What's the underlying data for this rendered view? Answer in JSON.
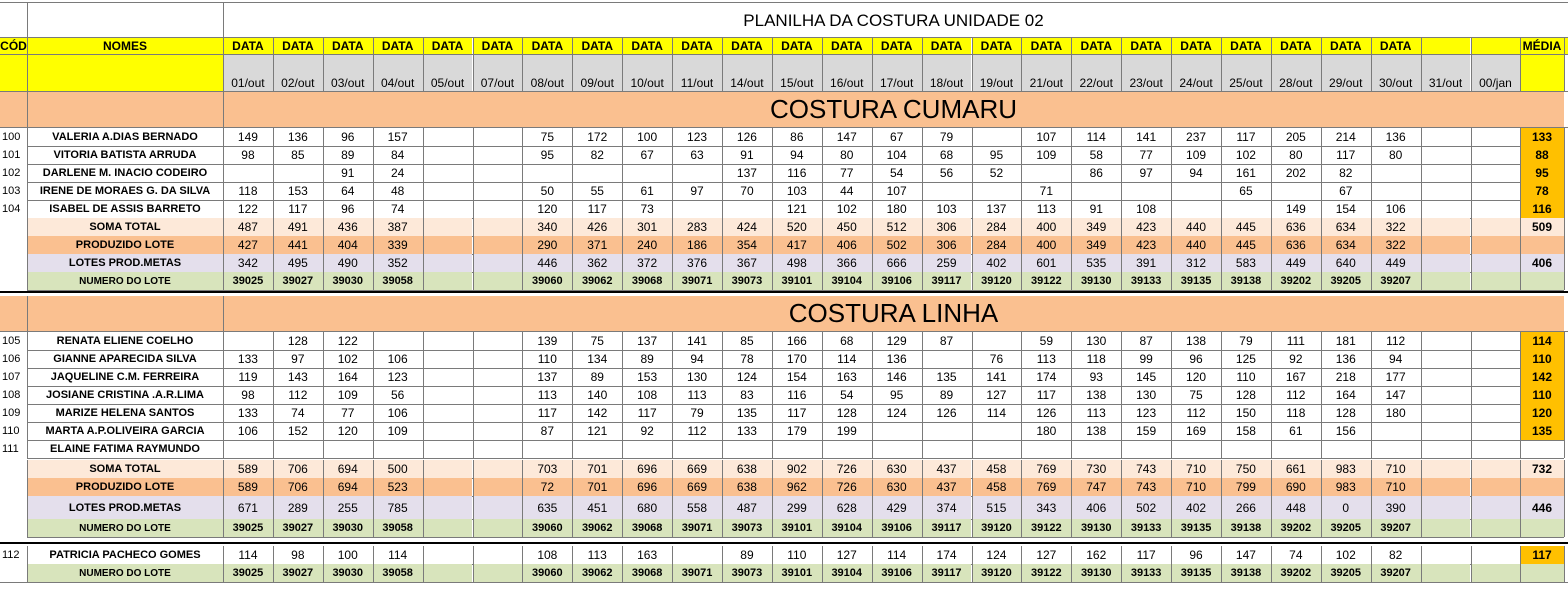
{
  "title": "PLANILHA DA COSTURA UNIDADE 02",
  "colors": {
    "yellow": "#ffff00",
    "date_gray": "#d9d9d9",
    "peach": "#fac090",
    "soma_bg": "#fde9d9",
    "lotes_bg": "#e4dfec",
    "numero_bg": "#d8e4bc",
    "media_bg": "#ffc000"
  },
  "header": {
    "cod": "CÓD",
    "nomes": "NOMES",
    "data": [
      "DATA",
      "DATA",
      "DATA",
      "DATA",
      "DATA",
      "DATA",
      "DATA",
      "DATA",
      "DATA",
      "DATA",
      "DATA",
      "DATA",
      "DATA",
      "DATA",
      "DATA",
      "DATA",
      "DATA",
      "DATA",
      "DATA",
      "DATA",
      "DATA",
      "DATA",
      "DATA",
      "DATA",
      "",
      "",
      "DATA"
    ],
    "media": "MÉDIA",
    "dates": [
      "01/out",
      "02/out",
      "03/out",
      "04/out",
      "05/out",
      "07/out",
      "08/out",
      "09/out",
      "10/out",
      "11/out",
      "14/out",
      "15/out",
      "16/out",
      "17/out",
      "18/out",
      "19/out",
      "21/out",
      "22/out",
      "23/out",
      "24/out",
      "25/out",
      "28/out",
      "29/out",
      "30/out",
      "31/out",
      "00/jan"
    ]
  },
  "sections": [
    {
      "title": "COSTURA CUMARU",
      "rows": [
        {
          "cod": "100",
          "name": "VALERIA A.DIAS BERNADO",
          "vals": [
            "149",
            "136",
            "96",
            "157",
            "",
            "",
            "75",
            "172",
            "100",
            "123",
            "126",
            "86",
            "147",
            "67",
            "79",
            "",
            "107",
            "114",
            "141",
            "237",
            "117",
            "205",
            "214",
            "136",
            "",
            ""
          ],
          "media": "133"
        },
        {
          "cod": "101",
          "name": "VITORIA BATISTA ARRUDA",
          "vals": [
            "98",
            "85",
            "89",
            "84",
            "",
            "",
            "95",
            "82",
            "67",
            "63",
            "91",
            "94",
            "80",
            "104",
            "68",
            "95",
            "109",
            "58",
            "77",
            "109",
            "102",
            "80",
            "117",
            "80",
            "",
            ""
          ],
          "media": "88"
        },
        {
          "cod": "102",
          "name": "DARLENE M. INACIO CODEIRO",
          "vals": [
            "",
            "",
            "91",
            "24",
            "",
            "",
            "",
            "",
            "",
            "",
            "137",
            "116",
            "77",
            "54",
            "56",
            "52",
            "",
            "86",
            "97",
            "94",
            "161",
            "202",
            "82",
            "",
            "",
            ""
          ],
          "media": "95"
        },
        {
          "cod": "103",
          "name": "IRENE DE MORAES G. DA SILVA",
          "vals": [
            "118",
            "153",
            "64",
            "48",
            "",
            "",
            "50",
            "55",
            "61",
            "97",
            "70",
            "103",
            "44",
            "107",
            "",
            "",
            "71",
            "",
            "",
            "",
            "65",
            "",
            "67",
            "",
            "",
            ""
          ],
          "media": "78"
        },
        {
          "cod": "104",
          "name": "ISABEL DE ASSIS BARRETO",
          "vals": [
            "122",
            "117",
            "96",
            "74",
            "",
            "",
            "120",
            "117",
            "73",
            "",
            "",
            "121",
            "102",
            "180",
            "103",
            "137",
            "113",
            "91",
            "108",
            "",
            "",
            "149",
            "154",
            "106",
            "",
            ""
          ],
          "media": "116"
        }
      ],
      "soma": {
        "label": "SOMA TOTAL",
        "vals": [
          "487",
          "491",
          "436",
          "387",
          "",
          "",
          "340",
          "426",
          "301",
          "283",
          "424",
          "520",
          "450",
          "512",
          "306",
          "284",
          "400",
          "349",
          "423",
          "440",
          "445",
          "636",
          "634",
          "322",
          "",
          ""
        ],
        "media": "509"
      },
      "produzido": {
        "label": "PRODUZIDO LOTE",
        "vals": [
          "427",
          "441",
          "404",
          "339",
          "",
          "",
          "290",
          "371",
          "240",
          "186",
          "354",
          "417",
          "406",
          "502",
          "306",
          "284",
          "400",
          "349",
          "423",
          "440",
          "445",
          "636",
          "634",
          "322",
          "",
          ""
        ],
        "media": ""
      },
      "lotes": {
        "label": "LOTES PROD.METAS",
        "vals": [
          "342",
          "495",
          "490",
          "352",
          "",
          "",
          "446",
          "362",
          "372",
          "376",
          "367",
          "498",
          "366",
          "666",
          "259",
          "402",
          "601",
          "535",
          "391",
          "312",
          "583",
          "449",
          "640",
          "449",
          "",
          ""
        ],
        "media": "406"
      },
      "numero": {
        "label": "NUMERO DO LOTE",
        "vals": [
          "39025",
          "39027",
          "39030",
          "39058",
          "",
          "",
          "39060",
          "39062",
          "39068",
          "39071",
          "39073",
          "39101",
          "39104",
          "39106",
          "39117",
          "39120",
          "39122",
          "39130",
          "39133",
          "39135",
          "39138",
          "39202",
          "39205",
          "39207",
          "",
          ""
        ],
        "media": ""
      }
    },
    {
      "title": "COSTURA LINHA",
      "rows": [
        {
          "cod": "105",
          "name": "RENATA ELIENE COELHO",
          "vals": [
            "",
            "128",
            "122",
            "",
            "",
            "",
            "139",
            "75",
            "137",
            "141",
            "85",
            "166",
            "68",
            "129",
            "87",
            "",
            "59",
            "130",
            "87",
            "138",
            "79",
            "111",
            "181",
            "112",
            "",
            ""
          ],
          "media": "114"
        },
        {
          "cod": "106",
          "name": "GIANNE APARECIDA SILVA",
          "vals": [
            "133",
            "97",
            "102",
            "106",
            "",
            "",
            "110",
            "134",
            "89",
            "94",
            "78",
            "170",
            "114",
            "136",
            "",
            "76",
            "113",
            "118",
            "99",
            "96",
            "125",
            "92",
            "136",
            "94",
            "",
            ""
          ],
          "media": "110"
        },
        {
          "cod": "107",
          "name": "JAQUELINE C.M. FERREIRA",
          "vals": [
            "119",
            "143",
            "164",
            "123",
            "",
            "",
            "137",
            "89",
            "153",
            "130",
            "124",
            "154",
            "163",
            "146",
            "135",
            "141",
            "174",
            "93",
            "145",
            "120",
            "110",
            "167",
            "218",
            "177",
            "",
            ""
          ],
          "media": "142"
        },
        {
          "cod": "108",
          "name": "JOSIANE CRISTINA .A.R.LIMA",
          "vals": [
            "98",
            "112",
            "109",
            "56",
            "",
            "",
            "113",
            "140",
            "108",
            "113",
            "83",
            "116",
            "54",
            "95",
            "89",
            "127",
            "117",
            "138",
            "130",
            "75",
            "128",
            "112",
            "164",
            "147",
            "",
            ""
          ],
          "media": "110"
        },
        {
          "cod": "109",
          "name": "MARIZE HELENA SANTOS",
          "vals": [
            "133",
            "74",
            "77",
            "106",
            "",
            "",
            "117",
            "142",
            "117",
            "79",
            "135",
            "117",
            "128",
            "124",
            "126",
            "114",
            "126",
            "113",
            "123",
            "112",
            "150",
            "118",
            "128",
            "180",
            "",
            ""
          ],
          "media": "120"
        },
        {
          "cod": "110",
          "name": "MARTA A.P.OLIVEIRA GARCIA",
          "vals": [
            "106",
            "152",
            "120",
            "109",
            "",
            "",
            "87",
            "121",
            "92",
            "112",
            "133",
            "179",
            "199",
            "",
            "",
            "",
            "180",
            "138",
            "159",
            "169",
            "158",
            "61",
            "156",
            "",
            "",
            ""
          ],
          "media": "135"
        },
        {
          "cod": "111",
          "name": "ELAINE FATIMA RAYMUNDO",
          "vals": [
            "",
            "",
            "",
            "",
            "",
            "",
            "",
            "",
            "",
            "",
            "",
            "",
            "",
            "",
            "",
            "",
            "",
            "",
            "",
            "",
            "",
            "",
            "",
            "",
            "",
            ""
          ],
          "media": ""
        }
      ],
      "soma": {
        "label": "SOMA TOTAL",
        "vals": [
          "589",
          "706",
          "694",
          "500",
          "",
          "",
          "703",
          "701",
          "696",
          "669",
          "638",
          "902",
          "726",
          "630",
          "437",
          "458",
          "769",
          "730",
          "743",
          "710",
          "750",
          "661",
          "983",
          "710",
          "",
          ""
        ],
        "media": "732"
      },
      "produzido": {
        "label": "PRODUZIDO LOTE",
        "vals": [
          "589",
          "706",
          "694",
          "523",
          "",
          "",
          "72",
          "701",
          "696",
          "669",
          "638",
          "962",
          "726",
          "630",
          "437",
          "458",
          "769",
          "747",
          "743",
          "710",
          "799",
          "690",
          "983",
          "710",
          "",
          ""
        ],
        "media": ""
      },
      "lotes": {
        "label": "LOTES PROD.METAS",
        "vals": [
          "671",
          "289",
          "255",
          "785",
          "",
          "",
          "635",
          "451",
          "680",
          "558",
          "487",
          "299",
          "628",
          "429",
          "374",
          "515",
          "343",
          "406",
          "502",
          "402",
          "266",
          "448",
          "0",
          "390",
          "",
          ""
        ],
        "media": "446"
      },
      "numero": {
        "label": "NUMERO DO LOTE",
        "vals": [
          "39025",
          "39027",
          "39030",
          "39058",
          "",
          "",
          "39060",
          "39062",
          "39068",
          "39071",
          "39073",
          "39101",
          "39104",
          "39106",
          "39117",
          "39120",
          "39122",
          "39130",
          "39133",
          "39135",
          "39138",
          "39202",
          "39205",
          "39207",
          "",
          ""
        ],
        "media": ""
      }
    }
  ],
  "extra": {
    "row": {
      "cod": "112",
      "name": "PATRICIA PACHECO GOMES",
      "vals": [
        "114",
        "98",
        "100",
        "114",
        "",
        "",
        "108",
        "113",
        "163",
        "",
        "89",
        "110",
        "127",
        "114",
        "174",
        "124",
        "127",
        "162",
        "117",
        "96",
        "147",
        "74",
        "102",
        "82",
        "",
        ""
      ],
      "media": "117"
    },
    "numero": {
      "label": "NUMERO DO LOTE",
      "vals": [
        "39025",
        "39027",
        "39030",
        "39058",
        "",
        "",
        "39060",
        "39062",
        "39068",
        "39071",
        "39073",
        "39101",
        "39104",
        "39106",
        "39117",
        "39120",
        "39122",
        "39130",
        "39133",
        "39135",
        "39138",
        "39202",
        "39205",
        "39207",
        "",
        ""
      ],
      "media": ""
    }
  }
}
